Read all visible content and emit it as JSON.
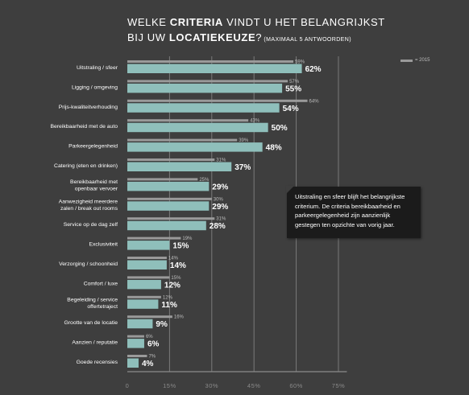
{
  "title": {
    "line1_pre": "WELKE ",
    "line1_bold": "CRITERIA",
    "line1_post": " VINDT U HET BELANGRIJKST",
    "line2_pre": "BIJ UW ",
    "line2_bold": "LOCATIEKEUZE",
    "line2_post": "?",
    "line2_small": " (MAXIMAAL 5 ANTWOORDEN)"
  },
  "legend": {
    "label": "= 2015"
  },
  "callout": {
    "text": "Uitstraling en sfeer blijft het belangrijkste criterium. De criteria bereikbaarheid en parkeergelegenheid zijn aanzienlijk gestegen ten opzichte van vorig jaar."
  },
  "colors": {
    "background": "#3e3e3e",
    "current_bar": "#8fbfbb",
    "previous_bar": "#9a9a9a",
    "grid": "#7a7a7a"
  },
  "chart_data": {
    "type": "bar",
    "orientation": "horizontal",
    "categories": [
      [
        "Uitstraling / sfeer"
      ],
      [
        "Ligging / omgeving"
      ],
      [
        "Prijs-kwaliteitverhouding"
      ],
      [
        "Bereikbaarheid met de auto"
      ],
      [
        "Parkeergelegenheid"
      ],
      [
        "Catering (eten en drinken)"
      ],
      [
        "Bereikbaarheid met",
        "openbaar vervoer"
      ],
      [
        "Aanwezigheid meerdere",
        "zalen / break out rooms"
      ],
      [
        "Service op de dag zelf"
      ],
      [
        "Exclusiviteit"
      ],
      [
        "Verzorging / schoonheid"
      ],
      [
        "Comfort / luxe"
      ],
      [
        "Begeleiding / service",
        "offertetraject"
      ],
      [
        "Grootte van de locatie"
      ],
      [
        "Aanzien / reputatie"
      ],
      [
        "Goede recensies"
      ]
    ],
    "series": [
      {
        "values": [
          62,
          55,
          54,
          50,
          48,
          37,
          29,
          29,
          28,
          15,
          14,
          12,
          11,
          9,
          6,
          4
        ]
      },
      {
        "name": "2015",
        "values": [
          59,
          57,
          64,
          43,
          39,
          31,
          25,
          30,
          31,
          19,
          14,
          15,
          12,
          16,
          6,
          7
        ]
      }
    ],
    "xticks": [
      "0",
      "15%",
      "30%",
      "45%",
      "60%",
      "75%"
    ],
    "xlim": [
      0,
      75
    ],
    "grid": true,
    "legend_position": "top-right"
  }
}
